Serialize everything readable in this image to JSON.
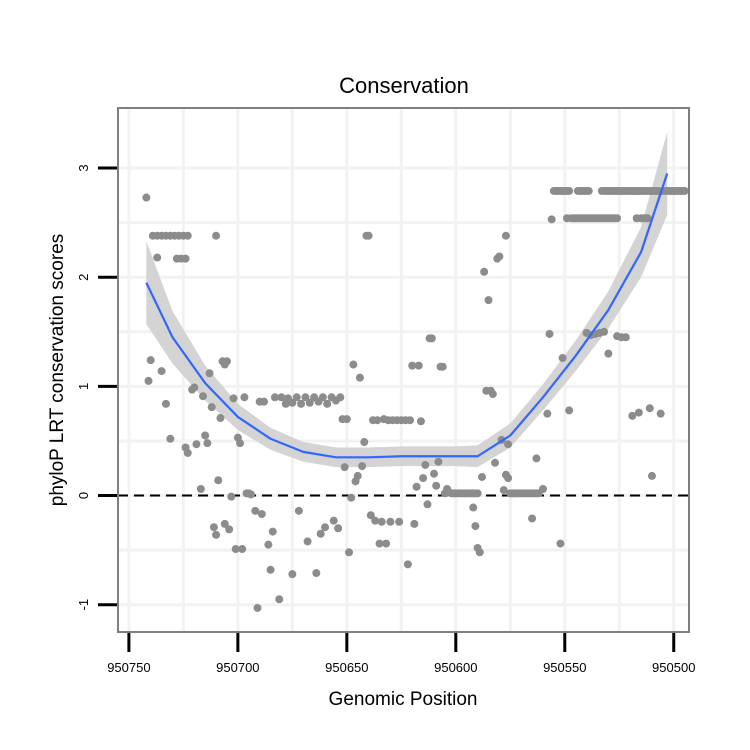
{
  "chart_data": {
    "type": "scatter",
    "title": "Conservation",
    "xlabel": "Genomic Position",
    "ylabel": "phyloP LRT conservation scores",
    "x_reversed": true,
    "xlim": [
      950755,
      950493
    ],
    "ylim": [
      -1.25,
      3.55
    ],
    "x_ticks": [
      950750,
      950700,
      950650,
      950600,
      950550,
      950500
    ],
    "y_ticks": [
      -1,
      0,
      1,
      2,
      3
    ],
    "grid": true,
    "reference_line": {
      "y": 0,
      "style": "dashed"
    },
    "colors": {
      "points": "#8c8c8c",
      "smooth": "#3366ff",
      "ribbon": "#cfcfcf",
      "frame": "#7f7f7f",
      "grid": "#f2f2f2"
    },
    "series": [
      {
        "type": "scatter",
        "points": [
          [
            950742,
            2.73
          ],
          [
            950740,
            1.24
          ],
          [
            950741,
            1.05
          ],
          [
            950737,
            2.18
          ],
          [
            950735,
            1.14
          ],
          [
            950733,
            0.84
          ],
          [
            950731,
            0.52
          ],
          [
            950739,
            2.38
          ],
          [
            950737,
            2.38
          ],
          [
            950735,
            2.38
          ],
          [
            950733,
            2.38
          ],
          [
            950731,
            2.38
          ],
          [
            950729,
            2.38
          ],
          [
            950727,
            2.38
          ],
          [
            950725,
            2.38
          ],
          [
            950723,
            2.38
          ],
          [
            950728,
            2.17
          ],
          [
            950726,
            2.17
          ],
          [
            950724,
            2.17
          ],
          [
            950724,
            0.44
          ],
          [
            950723,
            0.39
          ],
          [
            950721,
            0.97
          ],
          [
            950720,
            0.99
          ],
          [
            950719,
            0.47
          ],
          [
            950717,
            0.06
          ],
          [
            950716,
            0.91
          ],
          [
            950715,
            0.55
          ],
          [
            950714,
            0.48
          ],
          [
            950713,
            1.12
          ],
          [
            950712,
            0.81
          ],
          [
            950711,
            -0.29
          ],
          [
            950710,
            2.38
          ],
          [
            950710,
            -0.36
          ],
          [
            950709,
            0.14
          ],
          [
            950708,
            0.71
          ],
          [
            950707,
            1.23
          ],
          [
            950706,
            1.2
          ],
          [
            950706,
            -0.26
          ],
          [
            950705,
            1.23
          ],
          [
            950704,
            -0.31
          ],
          [
            950703,
            -0.01
          ],
          [
            950702,
            0.89
          ],
          [
            950701,
            -0.49
          ],
          [
            950700,
            0.53
          ],
          [
            950699,
            0.48
          ],
          [
            950698,
            -0.49
          ],
          [
            950697,
            0.9
          ],
          [
            950696,
            0.02
          ],
          [
            950695,
            0.02
          ],
          [
            950694,
            0.01
          ],
          [
            950692,
            -0.14
          ],
          [
            950691,
            -1.03
          ],
          [
            950690,
            0.86
          ],
          [
            950689,
            -0.17
          ],
          [
            950688,
            0.86
          ],
          [
            950686,
            -0.45
          ],
          [
            950685,
            -0.68
          ],
          [
            950684,
            -0.33
          ],
          [
            950683,
            0.9
          ],
          [
            950681,
            -0.95
          ],
          [
            950680,
            0.9
          ],
          [
            950678,
            0.84
          ],
          [
            950677,
            0.89
          ],
          [
            950675,
            0.85
          ],
          [
            950673,
            0.9
          ],
          [
            950671,
            0.84
          ],
          [
            950669,
            0.9
          ],
          [
            950667,
            0.85
          ],
          [
            950665,
            0.9
          ],
          [
            950663,
            0.86
          ],
          [
            950661,
            0.9
          ],
          [
            950659,
            0.84
          ],
          [
            950657,
            0.9
          ],
          [
            950655,
            0.87
          ],
          [
            950653,
            0.9
          ],
          [
            950675,
            -0.72
          ],
          [
            950672,
            -0.14
          ],
          [
            950668,
            -0.42
          ],
          [
            950664,
            -0.71
          ],
          [
            950662,
            -0.35
          ],
          [
            950660,
            -0.29
          ],
          [
            950656,
            -0.23
          ],
          [
            950654,
            -0.3
          ],
          [
            950652,
            0.7
          ],
          [
            950651,
            0.26
          ],
          [
            950650,
            0.7
          ],
          [
            950649,
            -0.52
          ],
          [
            950648,
            -0.02
          ],
          [
            950647,
            1.2
          ],
          [
            950646,
            0.13
          ],
          [
            950645,
            0.18
          ],
          [
            950644,
            1.08
          ],
          [
            950643,
            0.27
          ],
          [
            950642,
            0.49
          ],
          [
            950641,
            2.38
          ],
          [
            950640,
            2.38
          ],
          [
            950639,
            -0.18
          ],
          [
            950638,
            0.69
          ],
          [
            950637,
            -0.23
          ],
          [
            950636,
            0.69
          ],
          [
            950635,
            -0.44
          ],
          [
            950634,
            -0.24
          ],
          [
            950633,
            0.7
          ],
          [
            950632,
            -0.44
          ],
          [
            950631,
            0.69
          ],
          [
            950630,
            -0.24
          ],
          [
            950629,
            0.69
          ],
          [
            950627,
            0.69
          ],
          [
            950626,
            -0.24
          ],
          [
            950625,
            0.69
          ],
          [
            950623,
            0.69
          ],
          [
            950621,
            0.69
          ],
          [
            950622,
            -0.63
          ],
          [
            950620,
            1.19
          ],
          [
            950619,
            -0.26
          ],
          [
            950618,
            0.08
          ],
          [
            950617,
            1.19
          ],
          [
            950616,
            0.68
          ],
          [
            950615,
            0.16
          ],
          [
            950614,
            0.28
          ],
          [
            950613,
            -0.08
          ],
          [
            950612,
            1.44
          ],
          [
            950611,
            1.44
          ],
          [
            950610,
            0.2
          ],
          [
            950609,
            0.09
          ],
          [
            950608,
            0.31
          ],
          [
            950607,
            1.18
          ],
          [
            950606,
            1.18
          ],
          [
            950605,
            0.02
          ],
          [
            950604,
            0.06
          ],
          [
            950603,
            0.03
          ],
          [
            950602,
            0.02
          ],
          [
            950601,
            0.02
          ],
          [
            950600,
            0.02
          ],
          [
            950599,
            0.02
          ],
          [
            950598,
            0.02
          ],
          [
            950597,
            0.02
          ],
          [
            950596,
            0.02
          ],
          [
            950595,
            0.02
          ],
          [
            950594,
            0.02
          ],
          [
            950593,
            0.02
          ],
          [
            950592,
            0.02
          ],
          [
            950591,
            0.02
          ],
          [
            950590,
            0.02
          ],
          [
            950592,
            -0.11
          ],
          [
            950591,
            -0.28
          ],
          [
            950590,
            -0.48
          ],
          [
            950589,
            -0.52
          ],
          [
            950588,
            0.17
          ],
          [
            950587,
            2.05
          ],
          [
            950586,
            0.96
          ],
          [
            950585,
            1.79
          ],
          [
            950584,
            0.96
          ],
          [
            950583,
            0.93
          ],
          [
            950582,
            0.3
          ],
          [
            950581,
            2.17
          ],
          [
            950580,
            2.19
          ],
          [
            950579,
            0.51
          ],
          [
            950578,
            0.05
          ],
          [
            950577,
            2.38
          ],
          [
            950576,
            0.47
          ],
          [
            950575,
            0.02
          ],
          [
            950574,
            0.02
          ],
          [
            950573,
            0.02
          ],
          [
            950572,
            0.02
          ],
          [
            950571,
            0.02
          ],
          [
            950570,
            0.02
          ],
          [
            950569,
            0.02
          ],
          [
            950568,
            0.02
          ],
          [
            950567,
            0.02
          ],
          [
            950566,
            0.02
          ],
          [
            950565,
            0.02
          ],
          [
            950564,
            0.02
          ],
          [
            950563,
            0.02
          ],
          [
            950562,
            0.02
          ],
          [
            950577,
            0.19
          ],
          [
            950576,
            0.16
          ],
          [
            950573,
            0.02
          ],
          [
            950565,
            -0.21
          ],
          [
            950563,
            0.34
          ],
          [
            950560,
            0.06
          ],
          [
            950558,
            0.75
          ],
          [
            950557,
            1.48
          ],
          [
            950556,
            2.53
          ],
          [
            950555,
            2.79
          ],
          [
            950554,
            2.79
          ],
          [
            950553,
            2.79
          ],
          [
            950552,
            2.79
          ],
          [
            950551,
            2.79
          ],
          [
            950550,
            2.79
          ],
          [
            950549,
            2.79
          ],
          [
            950548,
            2.79
          ],
          [
            950552,
            -0.44
          ],
          [
            950551,
            1.26
          ],
          [
            950549,
            2.54
          ],
          [
            950548,
            0.78
          ],
          [
            950547,
            2.54
          ],
          [
            950546,
            2.54
          ],
          [
            950545,
            2.54
          ],
          [
            950544,
            2.54
          ],
          [
            950543,
            2.54
          ],
          [
            950542,
            2.54
          ],
          [
            950541,
            2.54
          ],
          [
            950540,
            2.54
          ],
          [
            950539,
            2.54
          ],
          [
            950538,
            2.54
          ],
          [
            950537,
            2.54
          ],
          [
            950536,
            2.54
          ],
          [
            950535,
            2.54
          ],
          [
            950534,
            2.54
          ],
          [
            950533,
            2.54
          ],
          [
            950532,
            2.54
          ],
          [
            950531,
            2.54
          ],
          [
            950530,
            2.54
          ],
          [
            950529,
            2.54
          ],
          [
            950528,
            2.54
          ],
          [
            950527,
            2.54
          ],
          [
            950526,
            2.54
          ],
          [
            950544,
            2.79
          ],
          [
            950543,
            2.79
          ],
          [
            950542,
            2.79
          ],
          [
            950541,
            2.79
          ],
          [
            950540,
            2.79
          ],
          [
            950539,
            2.79
          ],
          [
            950533,
            2.79
          ],
          [
            950532,
            2.79
          ],
          [
            950531,
            2.79
          ],
          [
            950530,
            2.79
          ],
          [
            950529,
            2.79
          ],
          [
            950528,
            2.79
          ],
          [
            950527,
            2.79
          ],
          [
            950526,
            2.79
          ],
          [
            950525,
            2.79
          ],
          [
            950524,
            2.79
          ],
          [
            950523,
            2.79
          ],
          [
            950522,
            2.79
          ],
          [
            950521,
            2.79
          ],
          [
            950520,
            2.79
          ],
          [
            950519,
            2.79
          ],
          [
            950518,
            2.79
          ],
          [
            950517,
            2.79
          ],
          [
            950516,
            2.79
          ],
          [
            950515,
            2.79
          ],
          [
            950514,
            2.79
          ],
          [
            950513,
            2.79
          ],
          [
            950512,
            2.79
          ],
          [
            950511,
            2.79
          ],
          [
            950510,
            2.79
          ],
          [
            950540,
            1.49
          ],
          [
            950538,
            1.47
          ],
          [
            950536,
            1.48
          ],
          [
            950534,
            1.49
          ],
          [
            950532,
            1.5
          ],
          [
            950530,
            1.3
          ],
          [
            950526,
            1.46
          ],
          [
            950524,
            1.45
          ],
          [
            950522,
            1.45
          ],
          [
            950519,
            0.73
          ],
          [
            950517,
            2.54
          ],
          [
            950516,
            0.76
          ],
          [
            950515,
            2.54
          ],
          [
            950514,
            2.54
          ],
          [
            950513,
            2.54
          ],
          [
            950512,
            2.54
          ],
          [
            950511,
            0.8
          ],
          [
            950510,
            0.18
          ],
          [
            950509,
            2.79
          ],
          [
            950508,
            2.79
          ],
          [
            950507,
            2.79
          ],
          [
            950506,
            0.75
          ],
          [
            950505,
            2.79
          ],
          [
            950504,
            2.79
          ],
          [
            950503,
            2.79
          ],
          [
            950502,
            2.79
          ],
          [
            950501,
            2.79
          ],
          [
            950500,
            2.79
          ],
          [
            950499,
            2.79
          ],
          [
            950498,
            2.79
          ],
          [
            950497,
            2.79
          ],
          [
            950496,
            2.79
          ],
          [
            950495,
            2.79
          ]
        ]
      },
      {
        "type": "smooth",
        "x": [
          950742,
          950730,
          950715,
          950700,
          950685,
          950670,
          950655,
          950640,
          950625,
          950610,
          950600,
          950590,
          950575,
          950560,
          950545,
          950530,
          950515,
          950503
        ],
        "y": [
          1.95,
          1.45,
          1.03,
          0.72,
          0.52,
          0.4,
          0.35,
          0.35,
          0.36,
          0.36,
          0.36,
          0.36,
          0.55,
          0.9,
          1.28,
          1.7,
          2.23,
          2.95
        ],
        "band": [
          0.38,
          0.24,
          0.16,
          0.12,
          0.1,
          0.09,
          0.09,
          0.09,
          0.09,
          0.09,
          0.09,
          0.1,
          0.11,
          0.12,
          0.14,
          0.17,
          0.23,
          0.38
        ]
      }
    ]
  }
}
